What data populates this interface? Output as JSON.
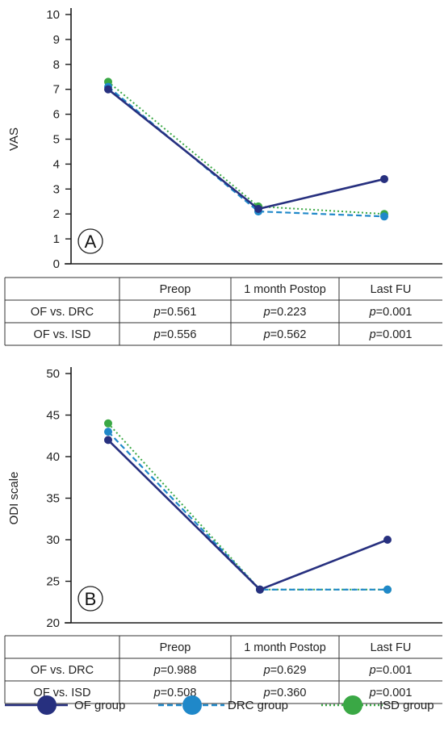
{
  "colors": {
    "of": "#27307f",
    "drc": "#1f88c9",
    "isd": "#3aa845",
    "axis": "#1a1a1a"
  },
  "chart_data": [
    {
      "type": "line",
      "panel": "A",
      "ylabel": "VAS",
      "ylim": [
        0,
        10
      ],
      "yticks": [
        0,
        1,
        2,
        3,
        4,
        5,
        6,
        7,
        8,
        9,
        10
      ],
      "categories": [
        "Preop",
        "1 month Postop",
        "Last FU"
      ],
      "series": [
        {
          "name": "OF group",
          "key": "of",
          "values": [
            7.0,
            2.2,
            3.4
          ]
        },
        {
          "name": "DRC group",
          "key": "drc",
          "values": [
            7.1,
            2.1,
            1.9
          ]
        },
        {
          "name": "ISD group",
          "key": "isd",
          "values": [
            7.3,
            2.3,
            2.0
          ]
        }
      ],
      "table": {
        "header": [
          "",
          "Preop",
          "1 month Postop",
          "Last FU"
        ],
        "rows": [
          [
            "OF vs. DRC",
            "p=0.561",
            "p=0.223",
            "p=0.001"
          ],
          [
            "OF vs. ISD",
            "p=0.556",
            "p=0.562",
            "p=0.001"
          ]
        ]
      }
    },
    {
      "type": "line",
      "panel": "B",
      "ylabel": "ODI scale",
      "ylim": [
        20,
        50
      ],
      "yticks": [
        20,
        25,
        30,
        35,
        40,
        45,
        50
      ],
      "categories": [
        "Preop",
        "1 month Postop",
        "Last FU"
      ],
      "series": [
        {
          "name": "OF group",
          "key": "of",
          "values": [
            42,
            24,
            30
          ]
        },
        {
          "name": "DRC group",
          "key": "drc",
          "values": [
            43,
            24,
            24
          ]
        },
        {
          "name": "ISD group",
          "key": "isd",
          "values": [
            44,
            24,
            24
          ]
        }
      ],
      "table": {
        "header": [
          "",
          "Preop",
          "1 month Postop",
          "Last FU"
        ],
        "rows": [
          [
            "OF vs. DRC",
            "p=0.988",
            "p=0.629",
            "p=0.001"
          ],
          [
            "OF vs. ISD",
            "p=0.508",
            "p=0.360",
            "p=0.001"
          ]
        ]
      }
    }
  ],
  "legend": [
    {
      "label": "OF group",
      "key": "of",
      "style": "solid"
    },
    {
      "label": "DRC group",
      "key": "drc",
      "style": "dashed"
    },
    {
      "label": "ISD group",
      "key": "isd",
      "style": "dotted"
    }
  ]
}
